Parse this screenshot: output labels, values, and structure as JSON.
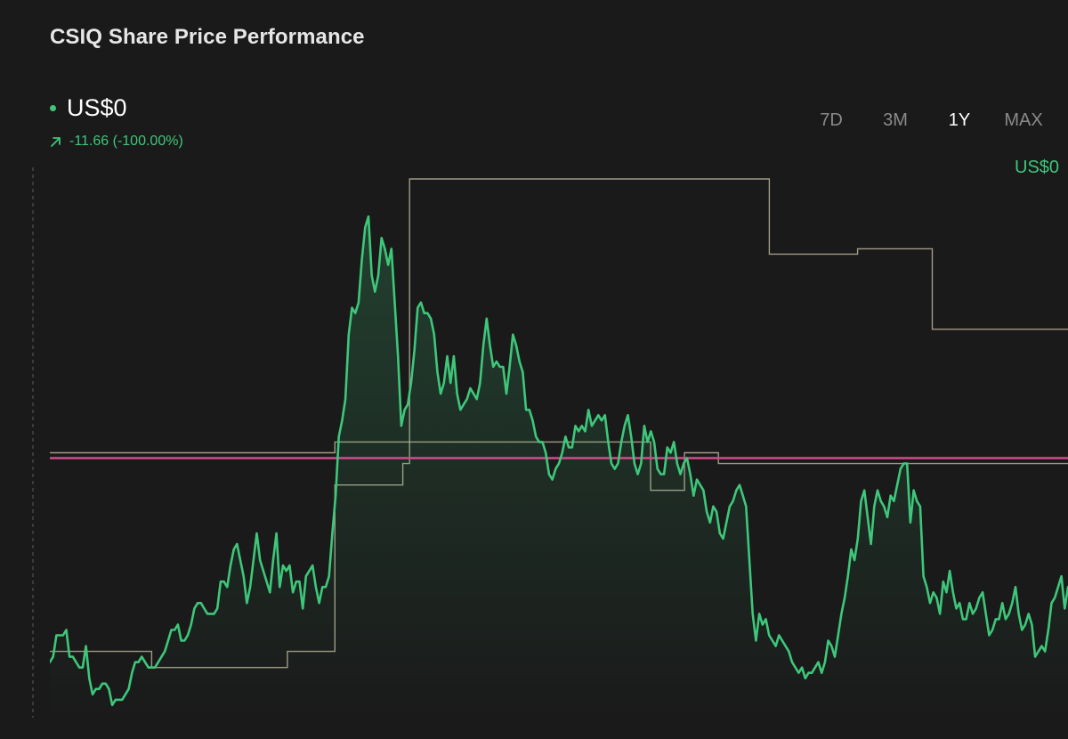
{
  "header": {
    "title": "CSIQ Share Price Performance",
    "price": "US$0",
    "change": "-11.66 (-100.00%)",
    "trend_icon": "arrow-up-right-icon"
  },
  "range_tabs": [
    {
      "label": "7D",
      "active": false
    },
    {
      "label": "3M",
      "active": false
    },
    {
      "label": "1Y",
      "active": true
    },
    {
      "label": "MAX",
      "active": false
    }
  ],
  "colors": {
    "background": "#1a1a1a",
    "price_line": "#3ec77a",
    "step_line": "#b8b39a",
    "reference_line": "#d24c8c",
    "inactive_tab": "#8a8a8a"
  },
  "chart_data": {
    "type": "line",
    "x_range": [
      0,
      300
    ],
    "y_range": [
      0,
      100
    ],
    "reference_level": 49,
    "price_label_partial": "US$0",
    "series": [
      {
        "values": [
          11,
          12,
          16,
          16,
          16,
          17,
          12,
          12,
          11,
          10,
          10,
          14,
          8,
          5,
          6,
          6,
          7,
          7,
          6,
          3,
          4,
          4,
          4,
          5,
          6,
          9,
          11,
          11,
          12,
          11,
          10,
          10,
          10,
          11,
          12,
          13,
          15,
          17,
          17,
          18,
          15,
          15,
          16,
          18,
          21,
          22,
          22,
          21,
          20,
          20,
          20,
          21,
          26,
          26,
          25,
          29,
          32,
          33,
          30,
          27,
          22,
          25,
          30,
          35,
          30,
          28,
          26,
          24,
          30,
          35,
          25,
          29,
          28,
          29,
          24,
          26,
          26,
          21,
          27,
          28,
          29,
          25,
          22,
          25,
          25,
          27,
          35,
          42,
          53,
          56,
          60,
          72,
          77,
          76,
          78,
          86,
          92,
          94,
          83,
          80,
          83,
          90,
          88,
          85,
          88,
          78,
          68,
          55,
          58,
          59,
          63,
          69,
          77,
          78,
          76,
          76,
          75,
          72,
          65,
          61,
          63,
          68,
          63,
          68,
          61,
          58,
          59,
          60,
          62,
          61,
          60,
          63,
          70,
          75,
          70,
          66,
          67,
          66,
          66,
          61,
          66,
          72,
          70,
          67,
          65,
          58,
          58,
          56,
          53,
          52,
          52,
          50,
          46,
          45,
          47,
          48,
          50,
          53,
          51,
          51,
          55,
          54,
          55,
          54,
          58,
          55,
          56,
          57,
          56,
          57,
          52,
          48,
          47,
          48,
          52,
          55,
          57,
          53,
          48,
          46,
          48,
          55,
          52,
          54,
          52,
          47,
          46,
          46,
          51,
          50,
          52,
          48,
          46,
          48,
          49,
          46,
          42,
          45,
          44,
          43,
          39,
          37,
          40,
          39,
          35,
          34,
          37,
          40,
          41,
          43,
          44,
          42,
          40,
          30,
          20,
          15,
          20,
          18,
          19,
          16,
          15,
          14,
          16,
          15,
          14,
          13,
          11,
          10,
          9,
          10,
          8,
          9,
          9,
          10,
          11,
          9,
          11,
          15,
          14,
          12,
          16,
          20,
          23,
          27,
          32,
          30,
          34,
          41,
          43,
          38,
          33,
          40,
          43,
          41,
          40,
          38,
          42,
          41,
          44,
          47,
          48,
          48,
          37,
          43,
          41,
          40,
          27,
          25,
          22,
          24,
          23,
          20,
          26,
          24,
          28,
          24,
          21,
          22,
          19,
          19,
          22,
          20,
          21,
          23,
          24,
          20,
          16,
          17,
          19,
          19,
          22,
          19,
          20,
          22,
          25,
          20,
          17,
          18,
          20,
          18,
          12,
          13,
          14,
          13,
          17,
          22,
          23,
          25,
          27,
          21,
          25
        ]
      },
      {
        "values": [
          {
            "x": 0,
            "y": 13
          },
          {
            "x": 30,
            "y": 13
          },
          {
            "x": 30,
            "y": 10
          },
          {
            "x": 70,
            "y": 10
          },
          {
            "x": 70,
            "y": 13
          },
          {
            "x": 84,
            "y": 13
          },
          {
            "x": 84,
            "y": 44
          },
          {
            "x": 104,
            "y": 44
          },
          {
            "x": 104,
            "y": 48
          },
          {
            "x": 106,
            "y": 48
          },
          {
            "x": 106,
            "y": 101
          },
          {
            "x": 212,
            "y": 101
          },
          {
            "x": 212,
            "y": 87
          },
          {
            "x": 238,
            "y": 87
          },
          {
            "x": 238,
            "y": 88
          },
          {
            "x": 260,
            "y": 88
          },
          {
            "x": 260,
            "y": 73
          },
          {
            "x": 300,
            "y": 73
          }
        ]
      },
      {
        "values": [
          {
            "x": 0,
            "y": 50
          },
          {
            "x": 84,
            "y": 50
          },
          {
            "x": 84,
            "y": 52
          },
          {
            "x": 177,
            "y": 52
          },
          {
            "x": 177,
            "y": 43
          },
          {
            "x": 187,
            "y": 43
          },
          {
            "x": 187,
            "y": 50
          },
          {
            "x": 197,
            "y": 50
          },
          {
            "x": 197,
            "y": 48
          },
          {
            "x": 300,
            "y": 48
          }
        ]
      }
    ]
  }
}
